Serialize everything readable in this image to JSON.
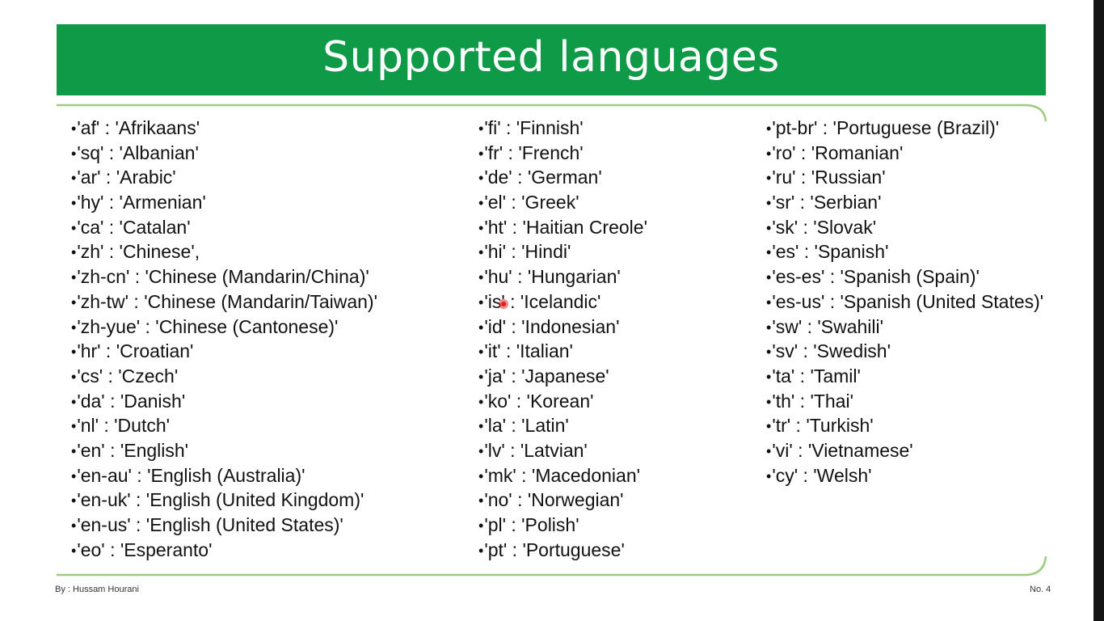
{
  "slide": {
    "title": "Supported languages",
    "accent_color": "#0f9a48",
    "frame_color": "#9ccc7f",
    "author": "By : Hussam Hourani",
    "page_number": "No. 4"
  },
  "columns": [
    {
      "items": [
        "'af' : 'Afrikaans'",
        "'sq' : 'Albanian'",
        "'ar' : 'Arabic'",
        "'hy' : 'Armenian'",
        "'ca' : 'Catalan'",
        "'zh' : 'Chinese',",
        "'zh-cn' : 'Chinese (Mandarin/China)'",
        "'zh-tw' : 'Chinese (Mandarin/Taiwan)'",
        "'zh-yue' : 'Chinese (Cantonese)'",
        "'hr' : 'Croatian'",
        "'cs' : 'Czech'",
        "'da' : 'Danish'",
        "'nl' : 'Dutch'",
        "'en' : 'English'",
        "'en-au' : 'English (Australia)'",
        "'en-uk' : 'English (United Kingdom)'",
        "'en-us' : 'English (United States)'",
        "'eo' : 'Esperanto'"
      ]
    },
    {
      "items": [
        "'fi' : 'Finnish'",
        "'fr' : 'French'",
        "'de' : 'German'",
        "'el' : 'Greek'",
        "'ht' : 'Haitian Creole'",
        "'hi' : 'Hindi'",
        "'hu' : 'Hungarian'",
        "'is' : 'Icelandic'",
        "'id' : 'Indonesian'",
        "'it' : 'Italian'",
        "'ja' : 'Japanese'",
        "'ko' : 'Korean'",
        "'la' : 'Latin'",
        "'lv' : 'Latvian'",
        "'mk' : 'Macedonian'",
        "'no' : 'Norwegian'",
        "'pl' : 'Polish'",
        "'pt' : 'Portuguese'"
      ]
    },
    {
      "items": [
        "'pt-br' : 'Portuguese (Brazil)'",
        "'ro' : 'Romanian'",
        "'ru' : 'Russian'",
        "'sr' : 'Serbian'",
        "'sk' : 'Slovak'",
        "'es' : 'Spanish'",
        "'es-es' : 'Spanish (Spain)'",
        "'es-us' : 'Spanish (United States)'",
        "'sw' : 'Swahili'",
        "'sv' : 'Swedish'",
        "'ta' : 'Tamil'",
        "'th' : 'Thai'",
        "'tr' : 'Turkish'",
        "'vi' : 'Vietnamese'",
        "'cy' : 'Welsh'"
      ]
    }
  ]
}
